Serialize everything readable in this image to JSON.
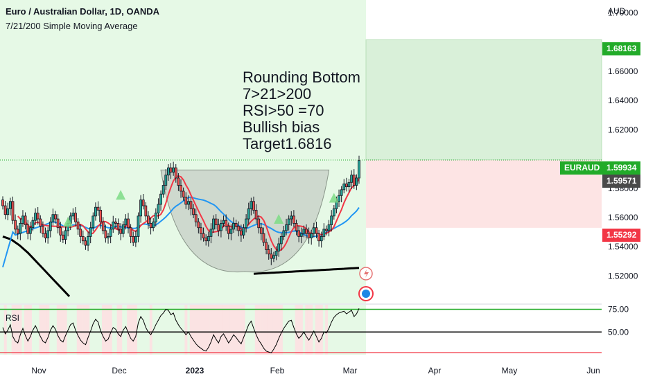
{
  "header": {
    "title": "Euro / Australian Dollar, 1D, OANDA",
    "indicator": "7/21/200 Simple Moving Average"
  },
  "annotation": [
    "Rounding Bottom",
    "7>21>200",
    "RSI>50 =70",
    "Bullish bias",
    "Target1.6816"
  ],
  "currency_label": "AUD",
  "price_tags": {
    "target": "1.68163",
    "symbol": "EURAUD",
    "last": "1.59934",
    "close": "1.59571",
    "stop": "1.55292"
  },
  "rsi_label": "RSI",
  "colors": {
    "up": "#26a69a",
    "down": "#ef5350",
    "candle": "#131722",
    "sma7": "#f23645",
    "sma21": "#2196f3",
    "sma200": "#000000",
    "bg_green": "#e6f9e6",
    "target_zone": "#d9f0d9",
    "stop_zone": "#fde4e4",
    "target_tag": "#22ab29",
    "stop_tag": "#f23645"
  },
  "chart_data": [
    {
      "type": "candlestick",
      "title": "Euro / Australian Dollar, 1D, OANDA",
      "y_axis": {
        "ticks": [
          "1.70000",
          "1.66000",
          "1.64000",
          "1.62000",
          "1.58000",
          "1.56000",
          "1.54000",
          "1.52000"
        ],
        "range": [
          1.505,
          1.705
        ]
      },
      "x_axis": {
        "ticks": [
          "Nov",
          "Dec",
          "2023",
          "Feb",
          "Mar",
          "Apr",
          "May",
          "Jun"
        ]
      },
      "close_series_approx": [
        1.568,
        1.562,
        1.566,
        1.571,
        1.558,
        1.552,
        1.549,
        1.556,
        1.561,
        1.555,
        1.549,
        1.553,
        1.558,
        1.563,
        1.559,
        1.554,
        1.549,
        1.546,
        1.551,
        1.557,
        1.562,
        1.559,
        1.553,
        1.548,
        1.545,
        1.551,
        1.556,
        1.561,
        1.563,
        1.557,
        1.552,
        1.547,
        1.544,
        1.541,
        1.547,
        1.553,
        1.561,
        1.567,
        1.565,
        1.557,
        1.551,
        1.546,
        1.547,
        1.552,
        1.557,
        1.556,
        1.552,
        1.549,
        1.555,
        1.559,
        1.553,
        1.547,
        1.543,
        1.547,
        1.561,
        1.572,
        1.568,
        1.561,
        1.556,
        1.553,
        1.557,
        1.563,
        1.569,
        1.576,
        1.582,
        1.589,
        1.594,
        1.591,
        1.594,
        1.587,
        1.582,
        1.578,
        1.574,
        1.569,
        1.571,
        1.566,
        1.562,
        1.557,
        1.553,
        1.549,
        1.546,
        1.544,
        1.547,
        1.552,
        1.559,
        1.555,
        1.551,
        1.556,
        1.558,
        1.554,
        1.549,
        1.552,
        1.556,
        1.554,
        1.551,
        1.548,
        1.553,
        1.559,
        1.566,
        1.571,
        1.565,
        1.559,
        1.553,
        1.549,
        1.543,
        1.538,
        1.535,
        1.532,
        1.534,
        1.537,
        1.542,
        1.547,
        1.551,
        1.555,
        1.559,
        1.561,
        1.556,
        1.551,
        1.547,
        1.549,
        1.552,
        1.549,
        1.546,
        1.549,
        1.553,
        1.549,
        1.544,
        1.547,
        1.552,
        1.551,
        1.555,
        1.561,
        1.566,
        1.571,
        1.575,
        1.579,
        1.583,
        1.581,
        1.584,
        1.589,
        1.582,
        1.587,
        1.599
      ],
      "sma_lines": [
        {
          "name": "SMA 7",
          "color": "#f23645"
        },
        {
          "name": "SMA 21",
          "color": "#2196f3"
        },
        {
          "name": "SMA 200",
          "color": "#000000"
        }
      ],
      "levels": {
        "target": 1.68163,
        "last": 1.59934,
        "close": 1.59571,
        "stop": 1.55292
      }
    },
    {
      "type": "line",
      "name": "RSI",
      "y_axis": {
        "ticks": [
          "75.00",
          "50.00"
        ],
        "range": [
          25,
          80
        ]
      },
      "values_approx": [
        55,
        48,
        52,
        58,
        45,
        40,
        38,
        47,
        54,
        46,
        40,
        45,
        52,
        57,
        51,
        45,
        40,
        38,
        44,
        52,
        57,
        53,
        46,
        41,
        39,
        46,
        52,
        58,
        60,
        52,
        46,
        41,
        38,
        36,
        44,
        51,
        59,
        64,
        61,
        51,
        45,
        40,
        42,
        49,
        55,
        53,
        48,
        45,
        52,
        56,
        49,
        43,
        40,
        45,
        60,
        67,
        63,
        55,
        50,
        47,
        52,
        58,
        63,
        68,
        71,
        75,
        74,
        69,
        71,
        63,
        58,
        54,
        51,
        47,
        50,
        45,
        41,
        37,
        34,
        32,
        30,
        29,
        33,
        39,
        47,
        42,
        38,
        45,
        48,
        43,
        38,
        42,
        47,
        44,
        40,
        37,
        44,
        51,
        58,
        62,
        54,
        47,
        41,
        37,
        32,
        29,
        28,
        27,
        31,
        36,
        43,
        49,
        54,
        58,
        62,
        63,
        55,
        48,
        43,
        46,
        50,
        45,
        41,
        46,
        51,
        45,
        39,
        43,
        50,
        49,
        54,
        61,
        66,
        69,
        71,
        72,
        73,
        70,
        72,
        74,
        67,
        70,
        76
      ]
    }
  ]
}
